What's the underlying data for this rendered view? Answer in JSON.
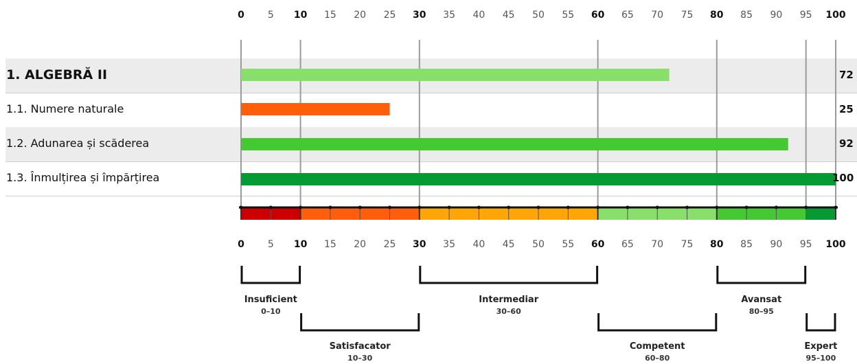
{
  "chart_data": {
    "type": "bar",
    "orientation": "horizontal",
    "xlim": [
      0,
      100
    ],
    "major_ticks": [
      0,
      10,
      30,
      60,
      80,
      100
    ],
    "minor_ticks": [
      5,
      15,
      20,
      25,
      35,
      40,
      45,
      50,
      55,
      65,
      70,
      75,
      85,
      90,
      95
    ],
    "tick_labels": [
      "0",
      "5",
      "10",
      "15",
      "20",
      "25",
      "30",
      "35",
      "40",
      "45",
      "50",
      "55",
      "60",
      "65",
      "70",
      "75",
      "80",
      "85",
      "90",
      "95",
      "100"
    ],
    "tick_values": [
      0,
      5,
      10,
      15,
      20,
      25,
      30,
      35,
      40,
      45,
      50,
      55,
      60,
      65,
      70,
      75,
      80,
      85,
      90,
      95,
      100
    ],
    "categories": [
      "1. ALGEBRĂ II",
      "1.1. Numere naturale",
      "1.2. Adunarea și scăderea",
      "1.3. Înmulțirea și împărțirea"
    ],
    "values": [
      72,
      25,
      92,
      100
    ],
    "value_labels": [
      "72",
      "25",
      "92",
      "100"
    ],
    "bar_colors": [
      "#88e06a",
      "#ff5e0a",
      "#45c932",
      "#059a33"
    ],
    "bands": [
      {
        "name": "Insuficient",
        "range": "0–10",
        "from": 0,
        "to": 10,
        "color": "#cc0000"
      },
      {
        "name": "Satisfacator",
        "range": "10–30",
        "from": 10,
        "to": 30,
        "color": "#ff5e0a"
      },
      {
        "name": "Intermediar",
        "range": "30–60",
        "from": 30,
        "to": 60,
        "color": "#ffa50a"
      },
      {
        "name": "Competent",
        "range": "60–80",
        "from": 60,
        "to": 80,
        "color": "#88e06a"
      },
      {
        "name": "Avansat",
        "range": "80–95",
        "from": 80,
        "to": 95,
        "color": "#45c932"
      },
      {
        "name": "Expert",
        "range": "95–100",
        "from": 95,
        "to": 100,
        "color": "#059a33"
      }
    ],
    "grid": true,
    "colors": {
      "row_shade": "#ececec",
      "grid": "#9a9a9a"
    }
  }
}
